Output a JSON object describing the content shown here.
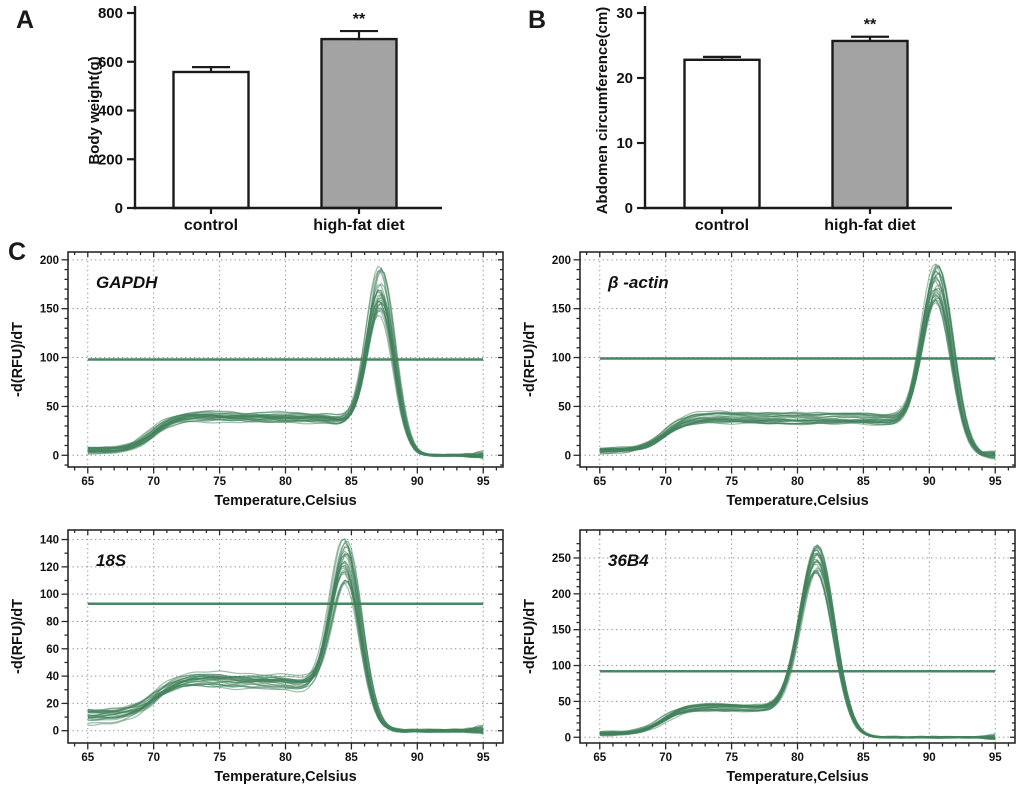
{
  "figure": {
    "background": "#ffffff",
    "curve_green": "#41815c",
    "threshold_green": "#3f7f5a",
    "axis_color": "#1a1a1a",
    "grid_color": "#8f8f8f",
    "bar_fill_control": "#ffffff",
    "bar_fill_highfat": "#a3a3a3"
  },
  "panels": {
    "A": {
      "label": "A"
    },
    "B": {
      "label": "B"
    },
    "C": {
      "label": "C"
    }
  },
  "chart_data": [
    {
      "id": "A",
      "type": "bar",
      "title": "",
      "categories": [
        "control",
        "high-fat diet"
      ],
      "values": [
        558,
        693
      ],
      "errors": [
        20,
        33
      ],
      "bar_colors": [
        "#ffffff",
        "#a3a3a3"
      ],
      "ylabel": "Body weight(g)",
      "xlabel": "",
      "ylim": [
        0,
        800
      ],
      "yticks": [
        0,
        200,
        400,
        600,
        800
      ],
      "significance": {
        "bar_index": 1,
        "text": "**"
      },
      "grid": false,
      "legend": "none"
    },
    {
      "id": "B",
      "type": "bar",
      "title": "",
      "categories": [
        "control",
        "high-fat diet"
      ],
      "values": [
        22.8,
        25.7
      ],
      "errors": [
        0.45,
        0.65
      ],
      "bar_colors": [
        "#ffffff",
        "#a3a3a3"
      ],
      "ylabel": "Abdomen circumference(cm)",
      "xlabel": "",
      "ylim": [
        0,
        30
      ],
      "yticks": [
        0,
        10,
        20,
        30
      ],
      "significance": {
        "bar_index": 1,
        "text": "**"
      },
      "grid": false,
      "legend": "none"
    },
    {
      "id": "GAPDH",
      "type": "line",
      "title": "GAPDH",
      "xlabel": "Temperature,Celsius",
      "ylabel": "-d(RFU)/dT",
      "xticks": [
        65,
        70,
        75,
        80,
        85,
        90,
        95
      ],
      "yticks": [
        0,
        50,
        100,
        150,
        200
      ],
      "x_shown": [
        65,
        95
      ],
      "xdomain": [
        63.5,
        96.5
      ],
      "ydomain": [
        -12,
        208
      ],
      "threshold_y": 98,
      "grid": true,
      "legend": "none",
      "curves": {
        "count": 26,
        "seed": 7,
        "peak_temp": 87.2,
        "peak_temp_jitter": 0.15,
        "peak_height_min": 136,
        "peak_height_max": 188,
        "peak_sigma": 1.05,
        "plateau_min": 33,
        "plateau_max": 44,
        "start_min": 2,
        "start_max": 8,
        "rise_center": 69.9
      }
    },
    {
      "id": "bactin",
      "type": "line",
      "title": "β -actin",
      "xlabel": "Temperature,Celsius",
      "ylabel": "-d(RFU)/dT",
      "xticks": [
        65,
        70,
        75,
        80,
        85,
        90,
        95
      ],
      "yticks": [
        0,
        50,
        100,
        150,
        200
      ],
      "x_shown": [
        65,
        95
      ],
      "xdomain": [
        63.5,
        96.5
      ],
      "ydomain": [
        -12,
        208
      ],
      "threshold_y": 99,
      "grid": true,
      "legend": "none",
      "curves": {
        "count": 26,
        "seed": 13,
        "peak_temp": 90.6,
        "peak_temp_jitter": 0.15,
        "peak_height_min": 150,
        "peak_height_max": 193,
        "peak_sigma": 1.15,
        "plateau_min": 32,
        "plateau_max": 44,
        "start_min": 2,
        "start_max": 7,
        "rise_center": 69.9
      }
    },
    {
      "id": "18S",
      "type": "line",
      "title": "18S",
      "xlabel": "Temperature,Celsius",
      "ylabel": "-d(RFU)/dT",
      "xticks": [
        65,
        70,
        75,
        80,
        85,
        90,
        95
      ],
      "yticks": [
        0,
        20,
        40,
        60,
        80,
        100,
        120,
        140
      ],
      "x_shown": [
        65,
        95
      ],
      "xdomain": [
        63.5,
        96.5
      ],
      "ydomain": [
        -9,
        147
      ],
      "threshold_y": 93,
      "grid": true,
      "legend": "none",
      "curves": {
        "count": 26,
        "seed": 21,
        "peak_temp": 84.6,
        "peak_temp_jitter": 0.15,
        "peak_height_min": 102,
        "peak_height_max": 138,
        "peak_sigma": 1.15,
        "plateau_min": 30,
        "plateau_max": 42,
        "start_min": 5,
        "start_max": 16,
        "rise_center": 70.1
      }
    },
    {
      "id": "36B4",
      "type": "line",
      "title": "36B4",
      "xlabel": "Temperature,Celsius",
      "ylabel": "-d(RFU)/dT",
      "xticks": [
        65,
        70,
        75,
        80,
        85,
        90,
        95
      ],
      "yticks": [
        0,
        50,
        100,
        150,
        200,
        250
      ],
      "x_shown": [
        65,
        95
      ],
      "xdomain": [
        63.5,
        96.5
      ],
      "ydomain": [
        -8,
        289
      ],
      "threshold_y": 92,
      "grid": true,
      "legend": "none",
      "curves": {
        "count": 26,
        "seed": 29,
        "peak_temp": 81.5,
        "peak_temp_jitter": 0.12,
        "peak_height_min": 212,
        "peak_height_max": 262,
        "peak_sigma": 1.3,
        "plateau_min": 36,
        "plateau_max": 45,
        "start_min": 3,
        "start_max": 8,
        "rise_center": 69.8
      }
    }
  ]
}
